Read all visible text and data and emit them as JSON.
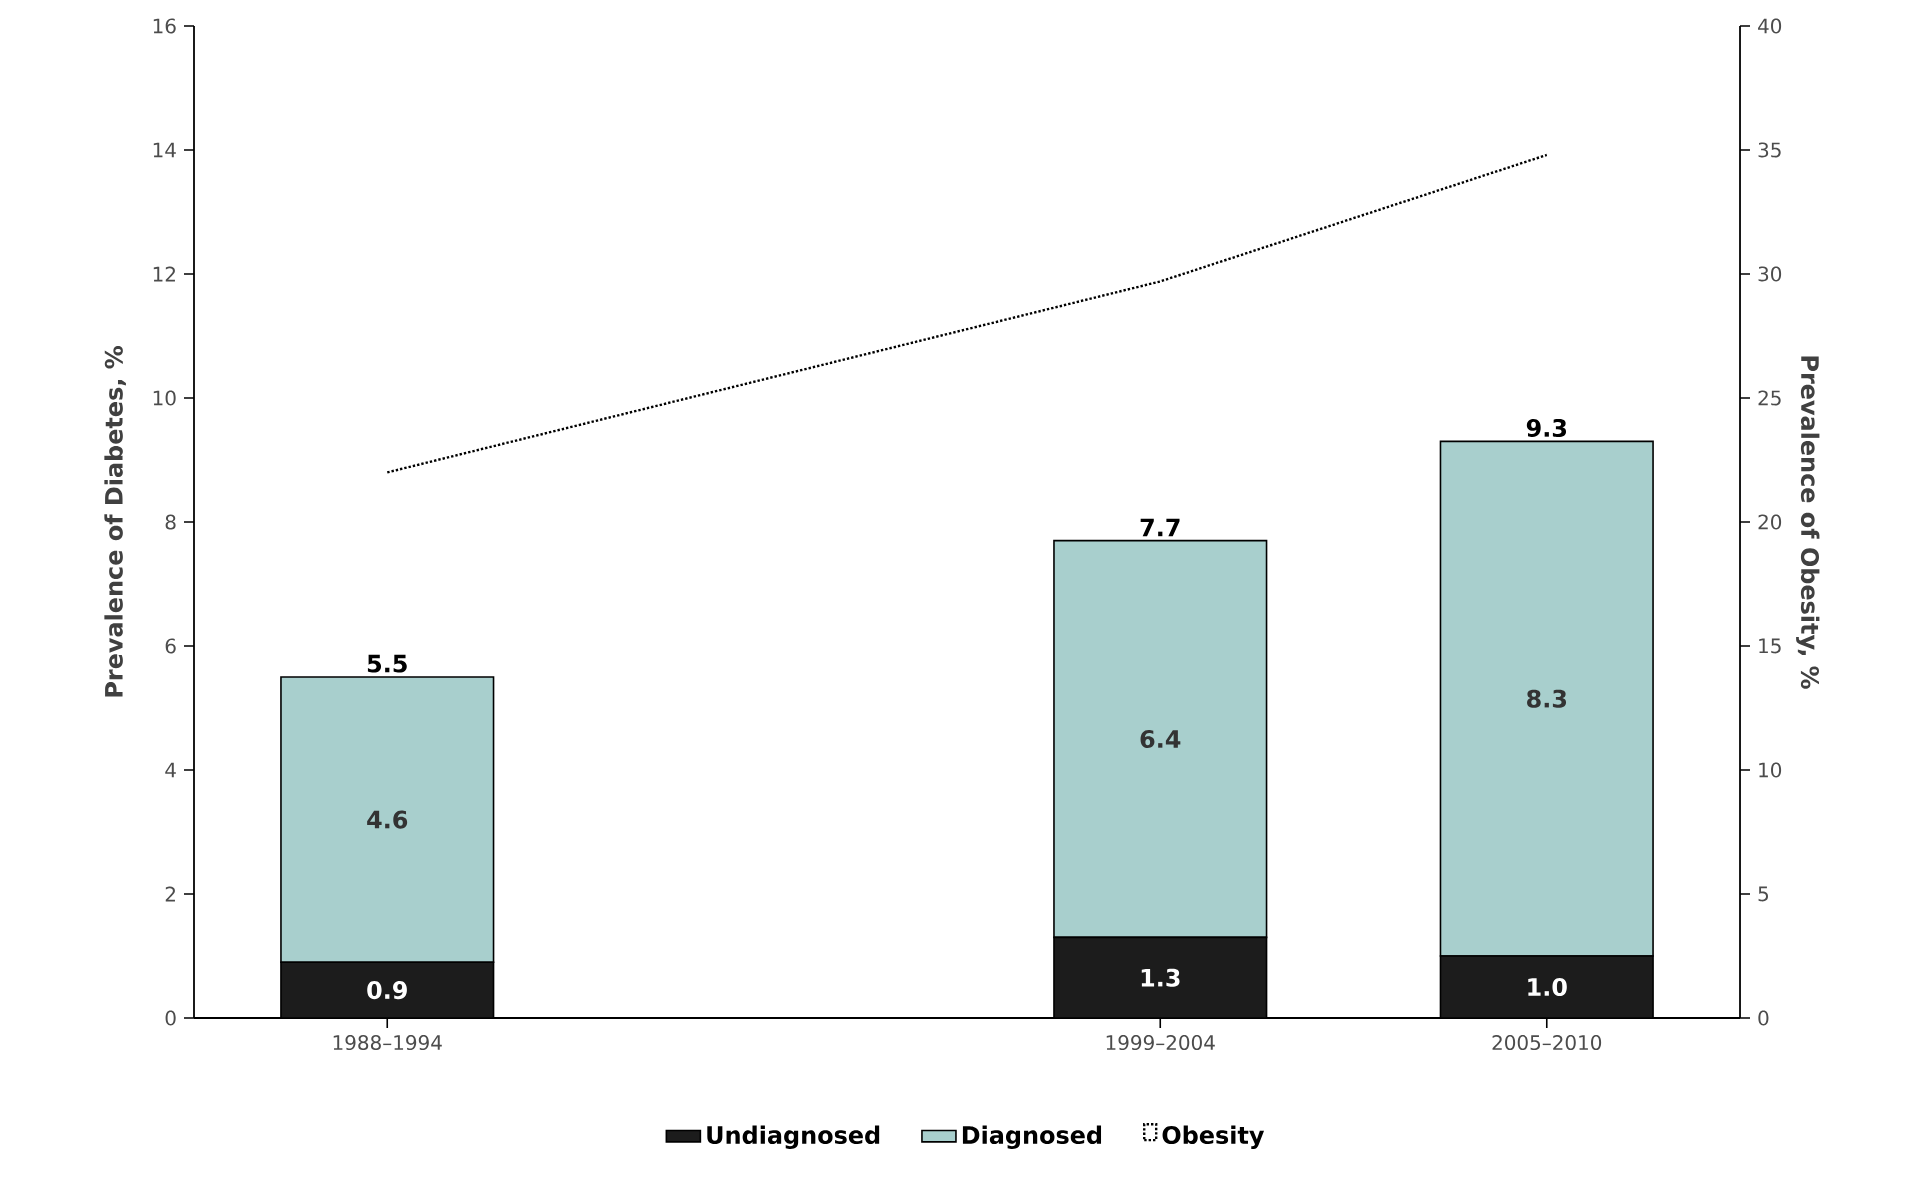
{
  "chart_data": {
    "type": "bar",
    "stacked": true,
    "ylabel": "Prevalence of Diabetes, %",
    "y2label": "Prevalence of Obesity, %",
    "categories": [
      "1988–1994",
      null,
      "1999–2004",
      "2005–2010"
    ],
    "series": [
      {
        "name": "Undiagnosed",
        "color": "#1c1c1c",
        "values": [
          0.9,
          null,
          1.3,
          1.0
        ],
        "value_labels": [
          "0.9",
          null,
          "1.3",
          "1.0"
        ]
      },
      {
        "name": "Diagnosed",
        "color": "#a8cfcd",
        "values": [
          4.6,
          null,
          6.4,
          8.3
        ],
        "value_labels": [
          "4.6",
          null,
          "6.4",
          "8.3"
        ]
      },
      {
        "name": "Obesity",
        "type": "line",
        "axis": "y2",
        "color": "#000000",
        "line_style": "dotted",
        "marker": "none",
        "values": [
          22,
          null,
          29.7,
          34.8
        ]
      }
    ],
    "totals": [
      "5.5",
      null,
      "7.7",
      "9.3"
    ],
    "ylim": [
      0,
      16
    ],
    "yticks": [
      0,
      2,
      4,
      6,
      8,
      10,
      12,
      14,
      16
    ],
    "y2lim": [
      0,
      40
    ],
    "y2ticks": [
      0,
      5,
      10,
      15,
      20,
      25,
      30,
      35,
      40
    ],
    "grid": false,
    "legend": "bottom"
  }
}
